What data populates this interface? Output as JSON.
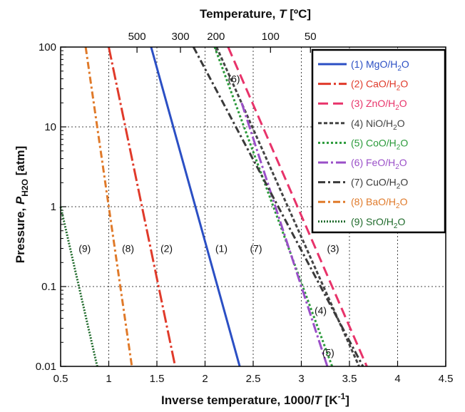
{
  "chart_data": {
    "type": "line",
    "xlabel_main": "Inverse temperature, 1000/",
    "xlabel_var": "T",
    "xlabel_unit_open": " [K",
    "xlabel_unit_exp": "-1",
    "xlabel_unit_close": "]",
    "ylabel_main": "Pressure, ",
    "ylabel_var": "P",
    "ylabel_sub": "H2O",
    "ylabel_unit": " [atm]",
    "top_label_main": "Temperature, ",
    "top_label_var": "T",
    "top_label_unit": " [ºC]",
    "xlim": [
      0.5,
      4.5
    ],
    "ylim": [
      0.01,
      100
    ],
    "y_scale": "log",
    "grid": true,
    "legend_position": "top-right",
    "x_ticks": [
      {
        "value": 0.5,
        "label": "0.5"
      },
      {
        "value": 1.0,
        "label": "1"
      },
      {
        "value": 1.5,
        "label": "1.5"
      },
      {
        "value": 2.0,
        "label": "2"
      },
      {
        "value": 2.5,
        "label": "2.5"
      },
      {
        "value": 3.0,
        "label": "3"
      },
      {
        "value": 3.5,
        "label": "3.5"
      },
      {
        "value": 4.0,
        "label": "4"
      },
      {
        "value": 4.5,
        "label": "4.5"
      }
    ],
    "y_ticks": [
      {
        "value": 0.01,
        "label": "0.01"
      },
      {
        "value": 0.1,
        "label": "0.1"
      },
      {
        "value": 1,
        "label": "1"
      },
      {
        "value": 10,
        "label": "10"
      },
      {
        "value": 100,
        "label": "100"
      }
    ],
    "top_ticks": [
      {
        "value": 500,
        "label": "500"
      },
      {
        "value": 300,
        "label": "300"
      },
      {
        "value": 200,
        "label": "200"
      },
      {
        "value": 100,
        "label": "100"
      },
      {
        "value": 50,
        "label": "50"
      }
    ],
    "series": [
      {
        "name": "(1) MgO/H",
        "name_sub": "2",
        "name_end": "O",
        "color": "#2b4fc4",
        "dash": "",
        "points": [
          [
            1.44,
            100
          ],
          [
            2.36,
            0.01
          ]
        ]
      },
      {
        "name": "(2) CaO/H",
        "name_sub": "2",
        "name_end": "O",
        "color": "#e03a2a",
        "dash": "18,4,3,4",
        "points": [
          [
            1.0,
            100
          ],
          [
            1.69,
            0.01
          ]
        ]
      },
      {
        "name": "(3) ZnO/H",
        "name_sub": "2",
        "name_end": "O",
        "color": "#e8336a",
        "dash": "14,7",
        "points": [
          [
            2.24,
            100
          ],
          [
            3.68,
            0.01
          ]
        ]
      },
      {
        "name": "(4) NiO/H",
        "name_sub": "2",
        "name_end": "O",
        "color": "#444444",
        "dash": "5,3",
        "points": [
          [
            2.12,
            100
          ],
          [
            3.6,
            0.01
          ]
        ]
      },
      {
        "name": "(5) CoO/H",
        "name_sub": "2",
        "name_end": "O",
        "color": "#2a9a3a",
        "dash": "3,3",
        "points": [
          [
            2.1,
            100
          ],
          [
            3.32,
            0.01
          ]
        ]
      },
      {
        "name": "(6) FeO/H",
        "name_sub": "2",
        "name_end": "O",
        "color": "#9a4fc8",
        "dash": "14,4,3,4",
        "points": [
          [
            2.38,
            20
          ],
          [
            3.27,
            0.01
          ]
        ]
      },
      {
        "name": "(7) CuO/H",
        "name_sub": "2",
        "name_end": "O",
        "color": "#3a3a3a",
        "dash": "10,4,3,4",
        "points": [
          [
            1.88,
            100
          ],
          [
            3.64,
            0.01
          ]
        ]
      },
      {
        "name": "(8) BaO/H",
        "name_sub": "2",
        "name_end": "O",
        "color": "#e07a2a",
        "dash": "10,4,3,4",
        "points": [
          [
            0.76,
            100
          ],
          [
            1.24,
            0.01
          ]
        ]
      },
      {
        "name": "(9) SrO/H",
        "name_sub": "2",
        "name_end": "O",
        "color": "#1e6a2a",
        "dash": "2,2",
        "points": [
          [
            0.5,
            1
          ],
          [
            0.88,
            0.01
          ]
        ]
      }
    ],
    "curve_labels": [
      {
        "text": "(1)",
        "x": 2.17,
        "y": 0.3
      },
      {
        "text": "(2)",
        "x": 1.6,
        "y": 0.3
      },
      {
        "text": "(3)",
        "x": 3.33,
        "y": 0.3
      },
      {
        "text": "(4)",
        "x": 3.2,
        "y": 0.05
      },
      {
        "text": "(5)",
        "x": 3.28,
        "y": 0.015
      },
      {
        "text": "(6)",
        "x": 2.3,
        "y": 40
      },
      {
        "text": "(7)",
        "x": 2.53,
        "y": 0.3
      },
      {
        "text": "(8)",
        "x": 1.2,
        "y": 0.3
      },
      {
        "text": "(9)",
        "x": 0.75,
        "y": 0.3
      }
    ]
  }
}
